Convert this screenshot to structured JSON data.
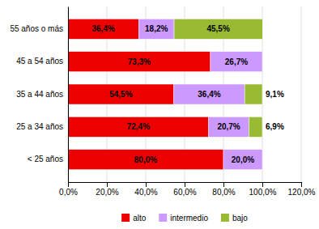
{
  "chart_data": {
    "type": "bar",
    "orientation": "horizontal",
    "stacked": true,
    "data_labels": true,
    "grid": true,
    "legend": "bottom",
    "categories": [
      "< 25 años",
      "25 a 34 años",
      "35 a 44 años",
      "45 a 54 años",
      "55 años o más"
    ],
    "series": [
      {
        "name": "alto",
        "color": "#EE0000",
        "values": [
          80.0,
          72.4,
          54.5,
          73.3,
          36.4
        ],
        "value_labels": [
          "80,0%",
          "72,4%",
          "54,5%",
          "73,3%",
          "36,4%"
        ]
      },
      {
        "name": "intermedio",
        "color": "#CC99FF",
        "values": [
          20.0,
          20.7,
          36.4,
          26.7,
          18.2
        ],
        "value_labels": [
          "20,0%",
          "20,7%",
          "36,4%",
          "26,7%",
          "18,2%"
        ]
      },
      {
        "name": "bajo",
        "color": "#99BB33",
        "values": [
          0.0,
          6.9,
          9.1,
          0.0,
          45.5
        ],
        "value_labels": [
          null,
          "6,9%",
          "9,1%",
          null,
          "45,5%"
        ]
      }
    ],
    "xlim": [
      0,
      120
    ],
    "xticks": [
      {
        "value": 0,
        "label": "0,0%"
      },
      {
        "value": 20,
        "label": "20,0%"
      },
      {
        "value": 40,
        "label": "40,0%"
      },
      {
        "value": 60,
        "label": "60,0%"
      },
      {
        "value": 80,
        "label": "80,0%"
      },
      {
        "value": 100,
        "label": "100,0%"
      },
      {
        "value": 120,
        "label": "120,0%"
      }
    ]
  }
}
